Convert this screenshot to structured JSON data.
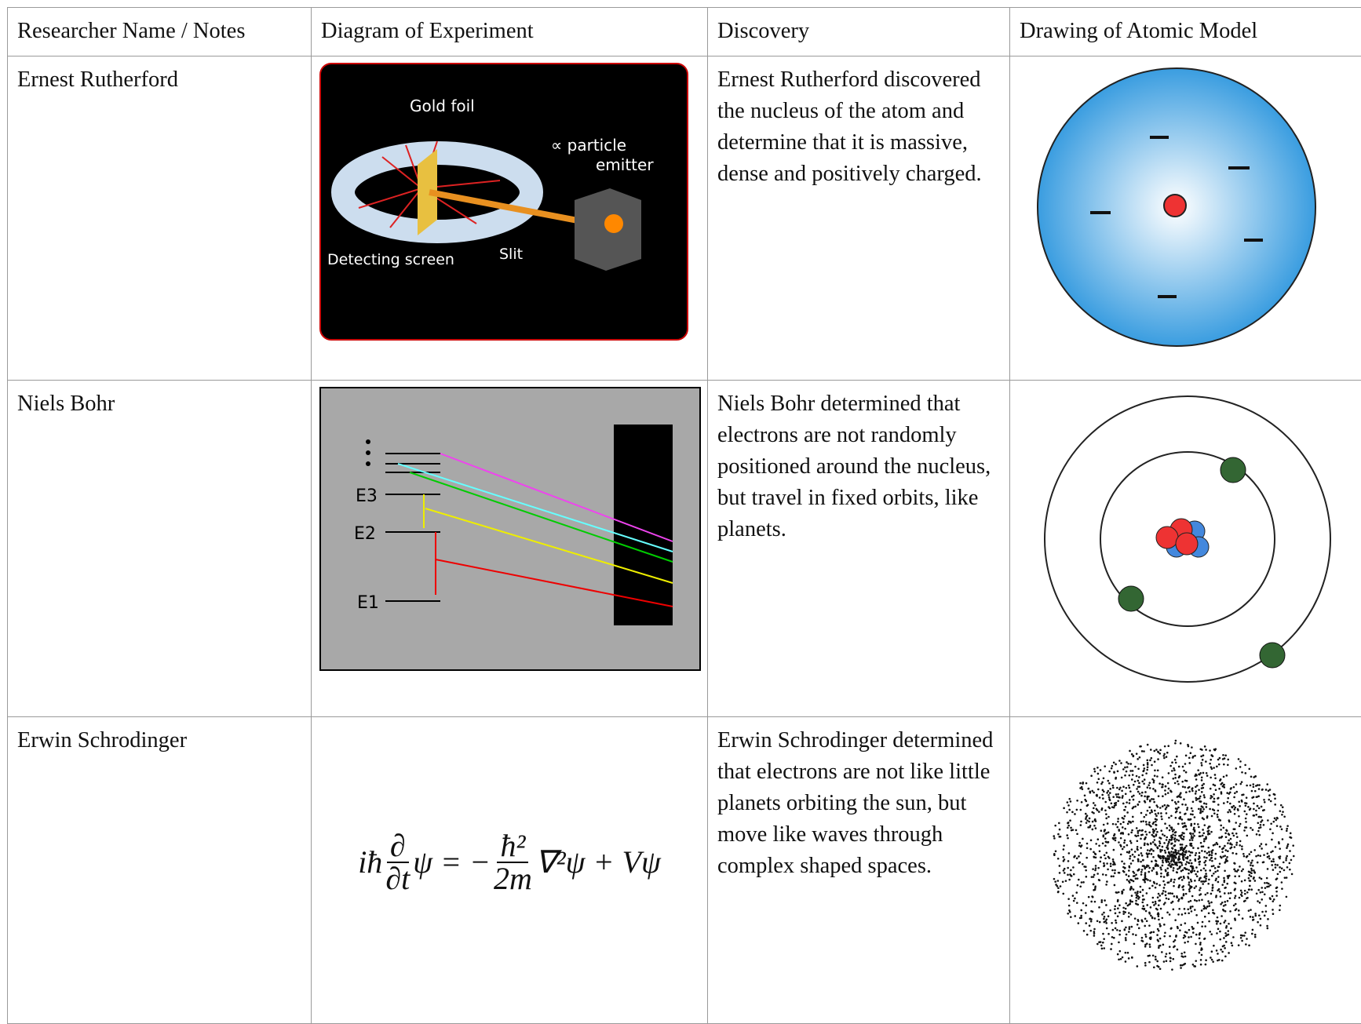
{
  "table": {
    "header": [
      "Researcher Name / Notes",
      "Diagram of Experiment",
      "Discovery",
      "Drawing of Atomic Model"
    ],
    "rows": [
      {
        "name": "Ernest Rutherford",
        "discovery": "Ernest Rutherford discovered the nucleus of the atom and determine that it is massive, dense and positively charged.",
        "diagram_labels": [
          "Gold foil",
          "∝ particle",
          "emitter",
          "Detecting screen",
          "Slit"
        ]
      },
      {
        "name": "Niels Bohr",
        "discovery": "Niels Bohr determined that electrons are not randomly positioned around the nucleus, but travel in fixed orbits, like planets.",
        "diagram_labels": [
          "E3",
          "E2",
          "E1"
        ]
      },
      {
        "name": "Erwin Schrodinger",
        "discovery": "Erwin Schrodinger determined that electrons are not like little planets orbiting the sun, but move like waves through complex shaped spaces.",
        "equation": {
          "lhs": "iħ",
          "d_num": "∂",
          "d_den": "∂t",
          "mid": "ψ = −",
          "h_num": "ħ²",
          "h_den": "2m",
          "rhs": "∇²ψ + Vψ"
        }
      }
    ]
  }
}
